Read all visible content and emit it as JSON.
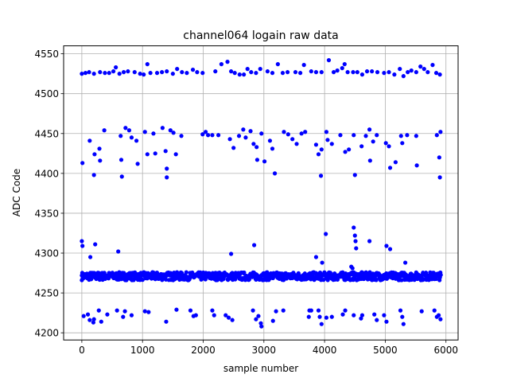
{
  "chart_data": {
    "type": "scatter",
    "title": "channel064 logain raw data",
    "xlabel": "sample number",
    "ylabel": "ADC Code",
    "xlim": [
      -300,
      6200
    ],
    "ylim": [
      4191,
      4560
    ],
    "xticks": [
      0,
      1000,
      2000,
      3000,
      4000,
      5000,
      6000
    ],
    "yticks": [
      4200,
      4250,
      4300,
      4350,
      4400,
      4450,
      4500,
      4550
    ],
    "grid": true,
    "series": [
      {
        "color": "#0000ff",
        "marker": "circle",
        "points": [
          [
            0,
            4525
          ],
          [
            60,
            4526
          ],
          [
            120,
            4527
          ],
          [
            200,
            4525
          ],
          [
            300,
            4527
          ],
          [
            380,
            4526
          ],
          [
            450,
            4526
          ],
          [
            520,
            4528
          ],
          [
            560,
            4533
          ],
          [
            620,
            4525
          ],
          [
            690,
            4527
          ],
          [
            760,
            4528
          ],
          [
            870,
            4527
          ],
          [
            960,
            4525
          ],
          [
            1020,
            4524
          ],
          [
            1080,
            4537
          ],
          [
            1130,
            4526
          ],
          [
            1240,
            4526
          ],
          [
            1320,
            4527
          ],
          [
            1400,
            4528
          ],
          [
            1500,
            4525
          ],
          [
            1570,
            4531
          ],
          [
            1650,
            4527
          ],
          [
            1730,
            4526
          ],
          [
            1830,
            4530
          ],
          [
            1900,
            4527
          ],
          [
            1990,
            4526
          ],
          [
            2200,
            4528
          ],
          [
            2300,
            4537
          ],
          [
            2400,
            4540
          ],
          [
            2460,
            4528
          ],
          [
            2520,
            4526
          ],
          [
            2600,
            4524
          ],
          [
            2670,
            4524
          ],
          [
            2730,
            4531
          ],
          [
            2790,
            4527
          ],
          [
            2870,
            4526
          ],
          [
            2940,
            4531
          ],
          [
            3060,
            4528
          ],
          [
            3140,
            4526
          ],
          [
            3230,
            4537
          ],
          [
            3310,
            4526
          ],
          [
            3390,
            4527
          ],
          [
            3520,
            4527
          ],
          [
            3600,
            4526
          ],
          [
            3660,
            4536
          ],
          [
            3780,
            4528
          ],
          [
            3860,
            4527
          ],
          [
            3950,
            4527
          ],
          [
            4070,
            4542
          ],
          [
            4150,
            4527
          ],
          [
            4210,
            4529
          ],
          [
            4290,
            4532
          ],
          [
            4330,
            4537
          ],
          [
            4380,
            4527
          ],
          [
            4470,
            4527
          ],
          [
            4540,
            4527
          ],
          [
            4620,
            4524
          ],
          [
            4700,
            4528
          ],
          [
            4780,
            4528
          ],
          [
            4870,
            4527
          ],
          [
            4980,
            4526
          ],
          [
            5060,
            4527
          ],
          [
            5150,
            4524
          ],
          [
            5240,
            4531
          ],
          [
            5300,
            4522
          ],
          [
            5370,
            4527
          ],
          [
            5430,
            4529
          ],
          [
            5510,
            4527
          ],
          [
            5580,
            4534
          ],
          [
            5640,
            4531
          ],
          [
            5700,
            4527
          ],
          [
            5780,
            4536
          ],
          [
            5840,
            4526
          ],
          [
            5900,
            4524
          ],
          [
            10,
            4413
          ],
          [
            130,
            4441
          ],
          [
            200,
            4398
          ],
          [
            210,
            4424
          ],
          [
            290,
            4431
          ],
          [
            300,
            4416
          ],
          [
            370,
            4454
          ],
          [
            640,
            4447
          ],
          [
            650,
            4417
          ],
          [
            660,
            4396
          ],
          [
            720,
            4457
          ],
          [
            780,
            4454
          ],
          [
            820,
            4445
          ],
          [
            900,
            4441
          ],
          [
            920,
            4412
          ],
          [
            1040,
            4452
          ],
          [
            1080,
            4424
          ],
          [
            1180,
            4450
          ],
          [
            1210,
            4425
          ],
          [
            1330,
            4457
          ],
          [
            1380,
            4428
          ],
          [
            1400,
            4406
          ],
          [
            1400,
            4395
          ],
          [
            1460,
            4454
          ],
          [
            1510,
            4451
          ],
          [
            1550,
            4424
          ],
          [
            1640,
            4447
          ],
          [
            1990,
            4449
          ],
          [
            2040,
            4452
          ],
          [
            2080,
            4448
          ],
          [
            2150,
            4448
          ],
          [
            2250,
            4448
          ],
          [
            2440,
            4443
          ],
          [
            2500,
            4432
          ],
          [
            2590,
            4447
          ],
          [
            2660,
            4455
          ],
          [
            2700,
            4445
          ],
          [
            2780,
            4453
          ],
          [
            2830,
            4437
          ],
          [
            2880,
            4433
          ],
          [
            2890,
            4417
          ],
          [
            2960,
            4450
          ],
          [
            3010,
            4415
          ],
          [
            3100,
            4441
          ],
          [
            3140,
            4431
          ],
          [
            3180,
            4400
          ],
          [
            3330,
            4452
          ],
          [
            3400,
            4449
          ],
          [
            3470,
            4443
          ],
          [
            3540,
            4437
          ],
          [
            3620,
            4450
          ],
          [
            3680,
            4452
          ],
          [
            3860,
            4436
          ],
          [
            3900,
            4424
          ],
          [
            3940,
            4397
          ],
          [
            3950,
            4430
          ],
          [
            4030,
            4452
          ],
          [
            4050,
            4442
          ],
          [
            4120,
            4437
          ],
          [
            4260,
            4448
          ],
          [
            4340,
            4427
          ],
          [
            4400,
            4430
          ],
          [
            4480,
            4448
          ],
          [
            4500,
            4398
          ],
          [
            4610,
            4434
          ],
          [
            4680,
            4447
          ],
          [
            4740,
            4455
          ],
          [
            4750,
            4416
          ],
          [
            4800,
            4440
          ],
          [
            4860,
            4448
          ],
          [
            5010,
            4438
          ],
          [
            5060,
            4434
          ],
          [
            5080,
            4407
          ],
          [
            5170,
            4414
          ],
          [
            5260,
            4447
          ],
          [
            5280,
            4438
          ],
          [
            5360,
            4448
          ],
          [
            5510,
            4447
          ],
          [
            5520,
            4410
          ],
          [
            5850,
            4448
          ],
          [
            5890,
            4420
          ],
          [
            5900,
            4395
          ],
          [
            5910,
            4452
          ],
          [
            0,
            4272
          ],
          [
            100,
            4271
          ],
          [
            200,
            4272
          ],
          [
            300,
            4270
          ],
          [
            400,
            4272
          ],
          [
            500,
            4271
          ],
          [
            600,
            4272
          ],
          [
            700,
            4270
          ],
          [
            800,
            4272
          ],
          [
            900,
            4271
          ],
          [
            1000,
            4272
          ],
          [
            1100,
            4271
          ],
          [
            1200,
            4272
          ],
          [
            1300,
            4270
          ],
          [
            1400,
            4272
          ],
          [
            1500,
            4271
          ],
          [
            1600,
            4272
          ],
          [
            1700,
            4270
          ],
          [
            1800,
            4271
          ],
          [
            1900,
            4272
          ],
          [
            2000,
            4271
          ],
          [
            2100,
            4270
          ],
          [
            2200,
            4272
          ],
          [
            2300,
            4271
          ],
          [
            2400,
            4272
          ],
          [
            2500,
            4271
          ],
          [
            2600,
            4270
          ],
          [
            2700,
            4271
          ],
          [
            2800,
            4272
          ],
          [
            2900,
            4271
          ],
          [
            3000,
            4272
          ],
          [
            3100,
            4270
          ],
          [
            3200,
            4271
          ],
          [
            3300,
            4272
          ],
          [
            3400,
            4271
          ],
          [
            3500,
            4270
          ],
          [
            3600,
            4271
          ],
          [
            3700,
            4272
          ],
          [
            3800,
            4271
          ],
          [
            3900,
            4270
          ],
          [
            4000,
            4272
          ],
          [
            4100,
            4271
          ],
          [
            4200,
            4272
          ],
          [
            4300,
            4270
          ],
          [
            4400,
            4271
          ],
          [
            4500,
            4272
          ],
          [
            4600,
            4271
          ],
          [
            4700,
            4270
          ],
          [
            4800,
            4272
          ],
          [
            4900,
            4271
          ],
          [
            5000,
            4272
          ],
          [
            5100,
            4271
          ],
          [
            5200,
            4270
          ],
          [
            5300,
            4271
          ],
          [
            5400,
            4272
          ],
          [
            5500,
            4271
          ],
          [
            5600,
            4270
          ],
          [
            5700,
            4272
          ],
          [
            5800,
            4271
          ],
          [
            5900,
            4272
          ],
          [
            0,
            4315
          ],
          [
            10,
            4309
          ],
          [
            140,
            4295
          ],
          [
            220,
            4311
          ],
          [
            600,
            4302
          ],
          [
            2460,
            4299
          ],
          [
            2840,
            4310
          ],
          [
            3860,
            4295
          ],
          [
            4020,
            4324
          ],
          [
            4480,
            4332
          ],
          [
            4500,
            4322
          ],
          [
            4510,
            4315
          ],
          [
            4520,
            4306
          ],
          [
            4740,
            4315
          ],
          [
            5020,
            4309
          ],
          [
            5080,
            4305
          ],
          [
            5330,
            4288
          ],
          [
            3960,
            4288
          ],
          [
            4440,
            4283
          ],
          [
            4460,
            4281
          ],
          [
            30,
            4221
          ],
          [
            100,
            4223
          ],
          [
            130,
            4216
          ],
          [
            190,
            4213
          ],
          [
            200,
            4217
          ],
          [
            280,
            4228
          ],
          [
            320,
            4214
          ],
          [
            420,
            4223
          ],
          [
            580,
            4228
          ],
          [
            680,
            4220
          ],
          [
            710,
            4227
          ],
          [
            820,
            4222
          ],
          [
            1040,
            4227
          ],
          [
            1100,
            4226
          ],
          [
            1390,
            4214
          ],
          [
            1560,
            4229
          ],
          [
            1790,
            4228
          ],
          [
            1840,
            4221
          ],
          [
            1880,
            4222
          ],
          [
            2150,
            4228
          ],
          [
            2180,
            4222
          ],
          [
            2370,
            4222
          ],
          [
            2420,
            4219
          ],
          [
            2480,
            4216
          ],
          [
            2820,
            4228
          ],
          [
            2870,
            4217
          ],
          [
            2910,
            4221
          ],
          [
            2950,
            4212
          ],
          [
            2960,
            4208
          ],
          [
            3150,
            4215
          ],
          [
            3200,
            4227
          ],
          [
            3320,
            4228
          ],
          [
            3740,
            4220
          ],
          [
            3750,
            4228
          ],
          [
            3780,
            4228
          ],
          [
            3900,
            4228
          ],
          [
            3920,
            4220
          ],
          [
            3950,
            4211
          ],
          [
            4030,
            4219
          ],
          [
            4120,
            4220
          ],
          [
            4300,
            4223
          ],
          [
            4340,
            4228
          ],
          [
            4480,
            4222
          ],
          [
            4600,
            4218
          ],
          [
            4620,
            4222
          ],
          [
            4820,
            4223
          ],
          [
            4860,
            4216
          ],
          [
            4980,
            4222
          ],
          [
            5020,
            4214
          ],
          [
            5250,
            4228
          ],
          [
            5280,
            4220
          ],
          [
            5300,
            4211
          ],
          [
            5600,
            4227
          ],
          [
            5810,
            4228
          ],
          [
            5850,
            4220
          ],
          [
            5880,
            4222
          ],
          [
            5910,
            4217
          ]
        ],
        "band": {
          "center": 4271,
          "spread": 5,
          "x_start": 0,
          "x_end": 5920
        }
      }
    ]
  }
}
